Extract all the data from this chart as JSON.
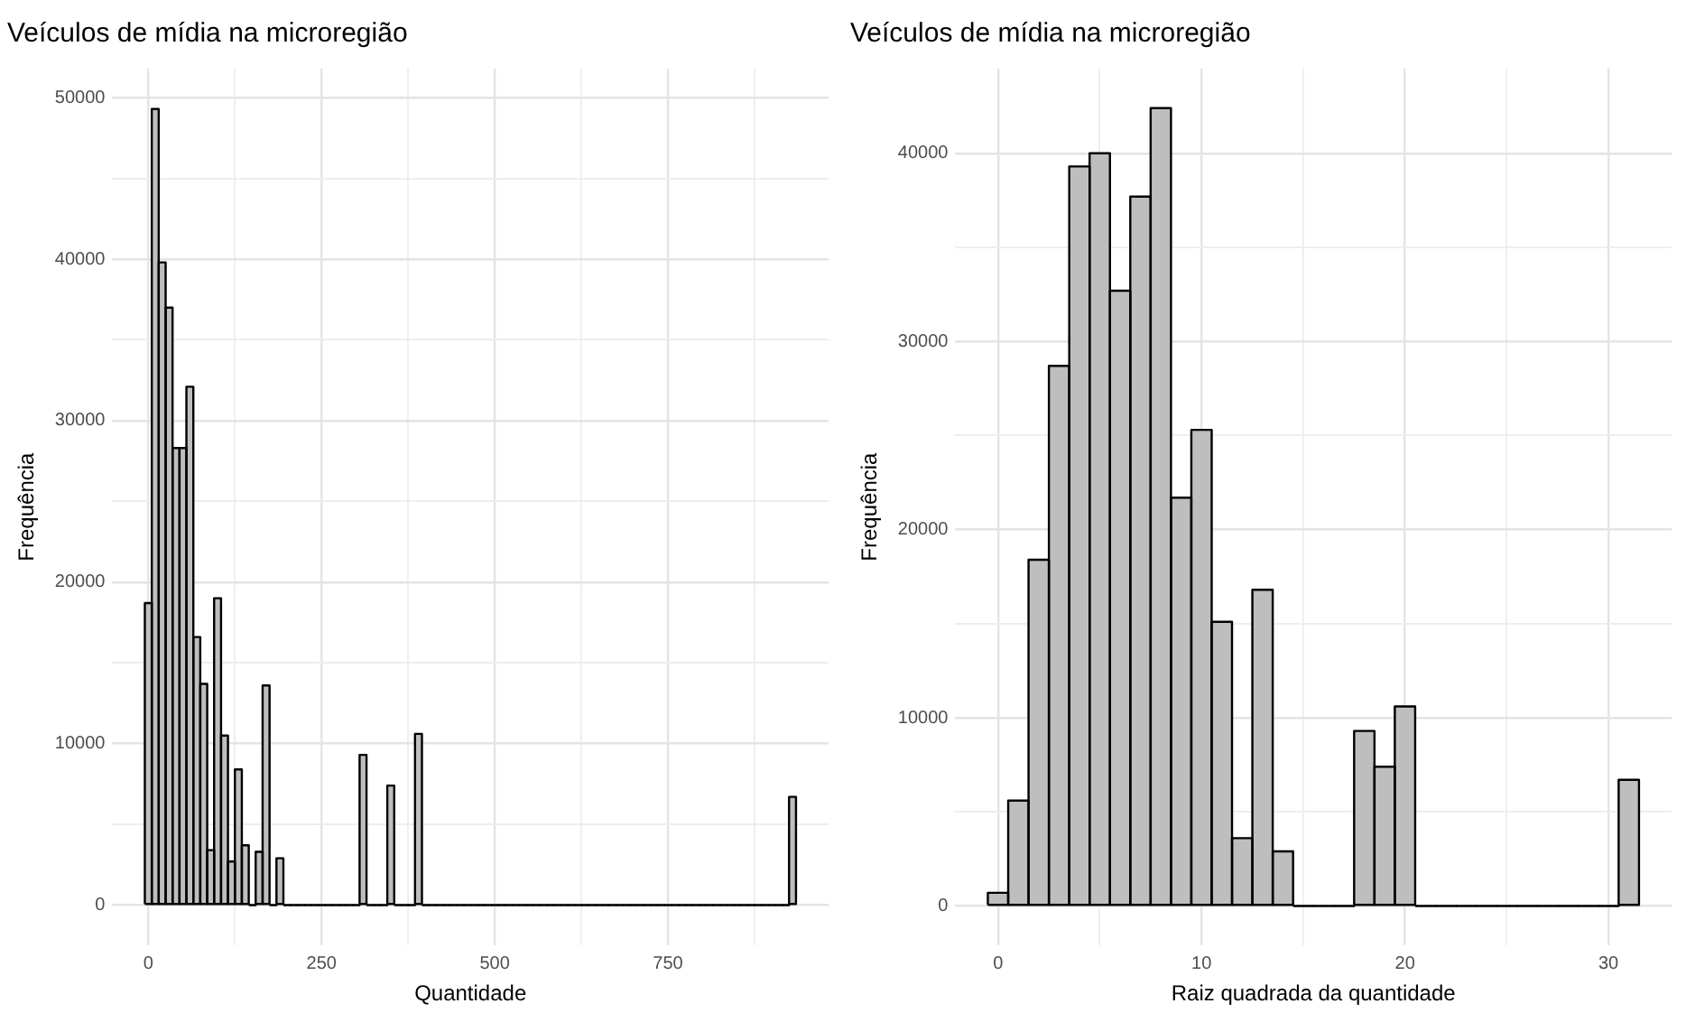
{
  "chart_data": [
    {
      "type": "histogram",
      "title": "Veículos de mídia na microregião",
      "xlabel": "Quantidade",
      "ylabel": "Frequência",
      "color": "#bebebe",
      "bins": [
        -5,
        5,
        15,
        25,
        35,
        45,
        55,
        65,
        75,
        85,
        95,
        105,
        115,
        125,
        135,
        145,
        155,
        165,
        175,
        185,
        195,
        205,
        215,
        225,
        235,
        245,
        255,
        265,
        275,
        285,
        295,
        305,
        315,
        325,
        335,
        345,
        355,
        365,
        375,
        385,
        395,
        405,
        415,
        425,
        435,
        445,
        455,
        465,
        475,
        485,
        495,
        505,
        515,
        525,
        535,
        545,
        555,
        565,
        575,
        585,
        595,
        605,
        615,
        625,
        635,
        645,
        655,
        665,
        675,
        685,
        695,
        705,
        715,
        725,
        735,
        745,
        755,
        765,
        775,
        785,
        795,
        805,
        815,
        825,
        835,
        845,
        855,
        865,
        875,
        885,
        895,
        905,
        915,
        925,
        935
      ],
      "values": [
        18700,
        49300,
        39800,
        37000,
        28300,
        28300,
        32100,
        16600,
        13700,
        3400,
        19000,
        10500,
        2700,
        8400,
        3700,
        0,
        3300,
        13600,
        0,
        2900,
        0,
        0,
        0,
        0,
        0,
        0,
        0,
        0,
        0,
        0,
        0,
        9300,
        0,
        0,
        0,
        7400,
        0,
        0,
        0,
        10600,
        0,
        0,
        0,
        0,
        0,
        0,
        0,
        0,
        0,
        0,
        0,
        0,
        0,
        0,
        0,
        0,
        0,
        0,
        0,
        0,
        0,
        0,
        0,
        0,
        0,
        0,
        0,
        0,
        0,
        0,
        0,
        0,
        0,
        0,
        0,
        0,
        0,
        0,
        0,
        0,
        0,
        0,
        0,
        0,
        0,
        0,
        0,
        0,
        0,
        0,
        0,
        0,
        0,
        6700
      ],
      "xlim": [
        -52,
        982
      ],
      "xticks": [
        0,
        {
          "value": 125,
          "label": null
        },
        250,
        {
          "value": 375,
          "label": null
        },
        500,
        {
          "value": 625,
          "label": null
        },
        750,
        {
          "value": 875,
          "label": null
        }
      ],
      "ylim": [
        -2500,
        51800
      ],
      "yticks": [
        0,
        {
          "value": 5000,
          "label": null
        },
        10000,
        {
          "value": 15000,
          "label": null
        },
        20000,
        {
          "value": 25000,
          "label": null
        },
        30000,
        {
          "value": 35000,
          "label": null
        },
        40000,
        {
          "value": 45000,
          "label": null
        },
        50000
      ],
      "grid": true,
      "legend": false
    },
    {
      "type": "histogram",
      "title": "Veículos de mídia na microregião",
      "xlabel": "Raiz quadrada da quantidade",
      "ylabel": "Frequência",
      "color": "#bebebe",
      "bins": [
        -0.5,
        0.5,
        1.5,
        2.5,
        3.5,
        4.5,
        5.5,
        6.5,
        7.5,
        8.5,
        9.5,
        10.5,
        11.5,
        12.5,
        13.5,
        14.5,
        15.5,
        16.5,
        17.5,
        18.5,
        19.5,
        20.5,
        21.5,
        22.5,
        23.5,
        24.5,
        25.5,
        26.5,
        27.5,
        28.5,
        29.5,
        30.5,
        31.5
      ],
      "values": [
        700,
        5600,
        18400,
        28700,
        39300,
        40000,
        32700,
        37700,
        42400,
        21700,
        25300,
        15100,
        3600,
        16800,
        2900,
        0,
        0,
        0,
        9300,
        7400,
        10600,
        0,
        0,
        0,
        0,
        0,
        0,
        0,
        0,
        0,
        0,
        6700
      ],
      "xlim": [
        -2.1,
        33.1
      ],
      "xticks": [
        0,
        {
          "value": 5,
          "label": null
        },
        10,
        {
          "value": 15,
          "label": null
        },
        20,
        {
          "value": 25,
          "label": null
        },
        30
      ],
      "ylim": [
        -2100,
        44500
      ],
      "yticks": [
        0,
        {
          "value": 5000,
          "label": null
        },
        10000,
        {
          "value": 15000,
          "label": null
        },
        20000,
        {
          "value": 25000,
          "label": null
        },
        30000,
        {
          "value": 35000,
          "label": null
        },
        40000
      ],
      "grid": true,
      "legend": false
    }
  ]
}
